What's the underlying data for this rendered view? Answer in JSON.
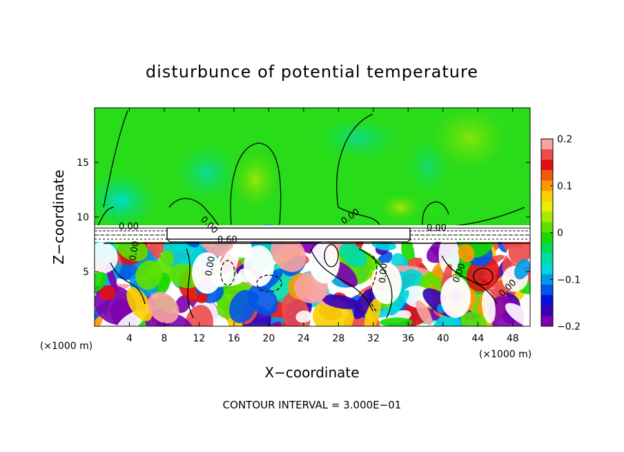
{
  "chart_data": {
    "type": "heatmap",
    "title": "disturbunce of potential temperature",
    "xlabel": "X−coordinate",
    "ylabel": "Z−coordinate",
    "x_unit_left": "(×1000 m)",
    "x_unit_right": "(×1000 m)",
    "xlim": [
      0,
      50
    ],
    "ylim": [
      0,
      20
    ],
    "x_ticks": [
      4,
      8,
      12,
      16,
      20,
      24,
      28,
      32,
      36,
      40,
      44,
      48
    ],
    "x_tick_labels": [
      "4",
      "8",
      "12",
      "16",
      "20",
      "24",
      "28",
      "32",
      "36",
      "40",
      "44",
      "48"
    ],
    "y_ticks": [
      5,
      10,
      15
    ],
    "y_tick_labels": [
      "5",
      "10",
      "15"
    ],
    "colorbar": {
      "range": [
        -0.2,
        0.2
      ],
      "ticks": [
        0.2,
        0.1,
        0,
        -0.1,
        -0.2
      ],
      "tick_labels": [
        "0.2",
        "0.1",
        "0",
        "−0.1",
        "−0.2"
      ],
      "colors": [
        "#f6a3a3",
        "#ee4b4b",
        "#e21111",
        "#f15a0c",
        "#fb9a00",
        "#fad000",
        "#e6ef00",
        "#a6e800",
        "#5ce000",
        "#18d800",
        "#00da5a",
        "#00dca8",
        "#00d6de",
        "#009be6",
        "#0056e6",
        "#0012dc",
        "#3700b6",
        "#7d00b0"
      ]
    },
    "contour_labels": [
      "0.00",
      "0.00",
      "0.00",
      "0.60",
      "0.00",
      "0.00",
      "0.00",
      "0.00",
      "0.00",
      "0.00"
    ],
    "footnote": "CONTOUR INTERVAL = 3.000E−01"
  }
}
